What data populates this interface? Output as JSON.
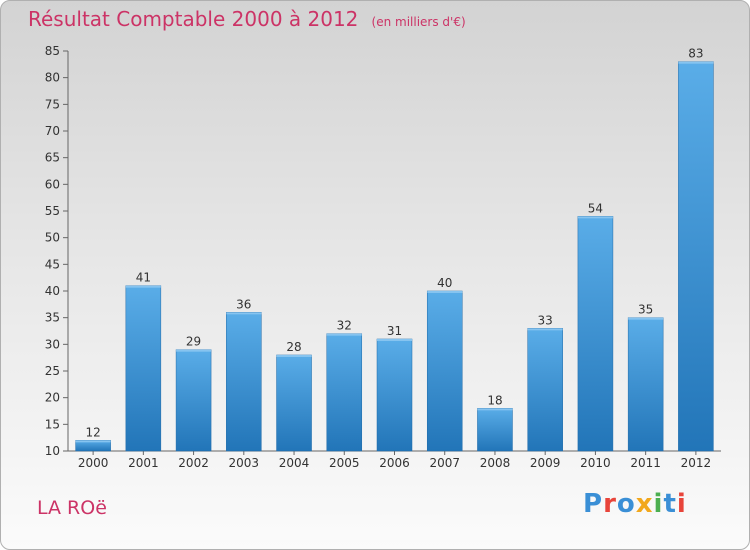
{
  "header": {
    "title": "Résultat Comptable 2000 à 2012",
    "unit": "(en milliers d'€)"
  },
  "footer": {
    "commune": "LA ROë",
    "logo_text": "Proxiti"
  },
  "colors": {
    "title": "#cc3366",
    "bar_top": "#5aade8",
    "bar_bottom": "#2275b8",
    "logo": [
      "#3a8fd6",
      "#e8443a",
      "#3a8fd6",
      "#f2a81d",
      "#4caf50",
      "#3a8fd6",
      "#e8443a"
    ]
  },
  "chart_data": {
    "type": "bar",
    "title": "Résultat Comptable 2000 à 2012",
    "ylabel": "en milliers d'€",
    "xlabel": "",
    "categories": [
      "2000",
      "2001",
      "2002",
      "2003",
      "2004",
      "2005",
      "2006",
      "2007",
      "2008",
      "2009",
      "2010",
      "2011",
      "2012"
    ],
    "values": [
      12,
      41,
      29,
      36,
      28,
      32,
      31,
      40,
      18,
      33,
      54,
      35,
      83
    ],
    "ylim": [
      10,
      85
    ],
    "yticks": [
      10,
      15,
      20,
      25,
      30,
      35,
      40,
      45,
      50,
      55,
      60,
      65,
      70,
      75,
      80,
      85
    ],
    "grid": false,
    "legend": "none"
  }
}
